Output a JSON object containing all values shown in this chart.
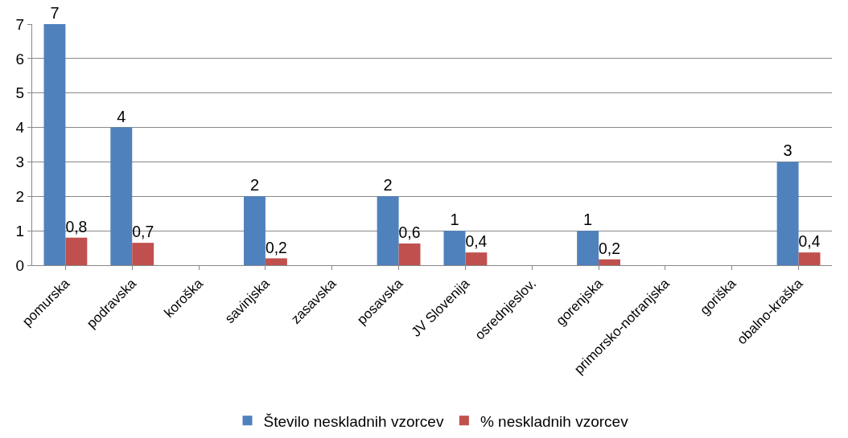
{
  "chart_data": {
    "type": "bar",
    "categories": [
      "pomurska",
      "podravska",
      "koroška",
      "savinjska",
      "zasavska",
      "posavska",
      "JV Slovenija",
      "osrednjeslov.",
      "gorenjska",
      "primorsko-notranjska",
      "goriška",
      "obalno-kraška"
    ],
    "series": [
      {
        "name": "Število neskladnih vzorcev",
        "color": "#4f81bd",
        "values": [
          7,
          4,
          null,
          2,
          null,
          2,
          1,
          null,
          1,
          null,
          null,
          3
        ],
        "value_labels": [
          "7",
          "4",
          null,
          "2",
          null,
          "2",
          "1",
          null,
          "1",
          null,
          null,
          "3"
        ]
      },
      {
        "name": "% neskladnih vzorcev",
        "color": "#c0504d",
        "values": [
          0.8,
          0.65,
          null,
          0.2,
          null,
          0.63,
          0.37,
          null,
          0.17,
          null,
          null,
          0.37
        ],
        "value_labels": [
          "0,8",
          "0,7",
          null,
          "0,2",
          null,
          "0,6",
          "0,4",
          null,
          "0,2",
          null,
          null,
          "0,4"
        ]
      }
    ],
    "ylim": [
      0,
      7
    ],
    "yticks": [
      0,
      1,
      2,
      3,
      4,
      5,
      6,
      7
    ],
    "grid": "y",
    "legend": "bottom"
  }
}
